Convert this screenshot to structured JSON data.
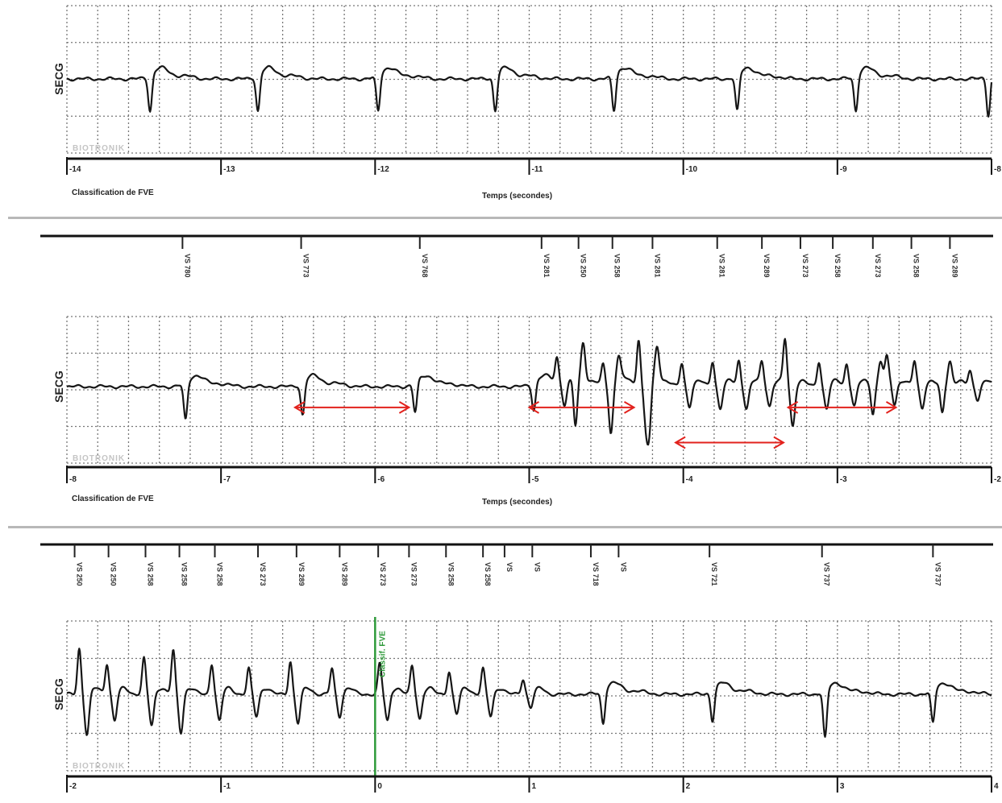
{
  "chart_data": [
    {
      "type": "line",
      "panel": "strip-1",
      "channel_label": "SECG",
      "watermark": "BIOTRONIK",
      "xlabel": "Temps (secondes)",
      "footer_left": "Classification de FVE",
      "x_ticks": [
        "-14",
        "-13",
        "-12",
        "-11",
        "-10",
        "-9",
        "-8"
      ],
      "xlim": [
        -14,
        -8
      ],
      "markers": [],
      "events": [],
      "annotations": [],
      "series": [
        {
          "beats": [
            {
              "t": -13.46,
              "kind": "neg",
              "amp": -0.72
            },
            {
              "t": -12.76,
              "kind": "neg",
              "amp": -0.72
            },
            {
              "t": -11.98,
              "kind": "neg",
              "amp": -0.72
            },
            {
              "t": -11.22,
              "kind": "neg",
              "amp": -0.72
            },
            {
              "t": -10.45,
              "kind": "neg",
              "amp": -0.72
            },
            {
              "t": -9.65,
              "kind": "neg",
              "amp": -0.72
            },
            {
              "t": -8.88,
              "kind": "neg",
              "amp": -0.72
            },
            {
              "t": -8.02,
              "kind": "neg",
              "amp": -0.8
            }
          ]
        }
      ]
    },
    {
      "type": "line",
      "panel": "strip-2",
      "channel_label": "SECG",
      "watermark": "BIOTRONIK",
      "xlabel": "Temps (secondes)",
      "footer_left": "Classification de FVE",
      "x_ticks": [
        "-8",
        "-7",
        "-6",
        "-5",
        "-4",
        "-3",
        "-2"
      ],
      "xlim": [
        -8,
        -2
      ],
      "markers": [
        {
          "t": -7.25,
          "label": "VS 780"
        },
        {
          "t": -6.48,
          "label": "VS 773"
        },
        {
          "t": -5.71,
          "label": "VS 768"
        },
        {
          "t": -4.92,
          "label": "VS 281"
        },
        {
          "t": -4.68,
          "label": "VS 250"
        },
        {
          "t": -4.46,
          "label": "VS 258"
        },
        {
          "t": -4.2,
          "label": "VS 281"
        },
        {
          "t": -3.78,
          "label": "VS 281"
        },
        {
          "t": -3.49,
          "label": "VS 289"
        },
        {
          "t": -3.24,
          "label": "VS 273"
        },
        {
          "t": -3.03,
          "label": "VS 258"
        },
        {
          "t": -2.77,
          "label": "VS 273"
        },
        {
          "t": -2.52,
          "label": "VS 258"
        },
        {
          "t": -2.27,
          "label": "VS 289"
        }
      ],
      "events": [],
      "annotations": [
        {
          "type": "double-arrow",
          "from": -6.52,
          "to": -5.78,
          "level": 0.62
        },
        {
          "type": "double-arrow",
          "from": -5.0,
          "to": -4.32,
          "level": 0.62
        },
        {
          "type": "double-arrow",
          "from": -4.05,
          "to": -3.35,
          "level": 0.86
        },
        {
          "type": "double-arrow",
          "from": -3.32,
          "to": -2.62,
          "level": 0.62
        }
      ],
      "series": [
        {
          "beats": [
            {
              "t": -7.23,
              "kind": "neg",
              "amp": -0.75
            },
            {
              "t": -6.47,
              "kind": "neg",
              "amp": -0.65
            },
            {
              "t": -5.74,
              "kind": "neg",
              "amp": -0.6
            },
            {
              "t": -4.97,
              "kind": "neg",
              "amp": -0.55
            },
            {
              "t": -4.8,
              "kind": "bi",
              "amp": 0.5
            },
            {
              "t": -4.68,
              "kind": "bi",
              "amp": -0.95
            },
            {
              "t": -4.5,
              "kind": "bi",
              "amp": 0.45
            },
            {
              "t": -4.45,
              "kind": "bi",
              "amp": -0.55
            },
            {
              "t": -4.27,
              "kind": "bi",
              "amp": 0.95
            },
            {
              "t": -4.2,
              "kind": "bi",
              "amp": -0.75
            },
            {
              "t": -3.99,
              "kind": "bi",
              "amp": 0.45
            },
            {
              "t": -3.79,
              "kind": "bi",
              "amp": 0.5
            },
            {
              "t": -3.62,
              "kind": "bi",
              "amp": 0.5
            },
            {
              "t": -3.47,
              "kind": "bi",
              "amp": 0.45
            },
            {
              "t": -3.32,
              "kind": "bi",
              "amp": 0.9
            },
            {
              "t": -3.1,
              "kind": "bi",
              "amp": 0.5
            },
            {
              "t": -2.92,
              "kind": "bi",
              "amp": 0.45
            },
            {
              "t": -2.75,
              "kind": "bi",
              "amp": -0.55
            },
            {
              "t": -2.66,
              "kind": "bi",
              "amp": 0.5
            },
            {
              "t": -2.48,
              "kind": "bi",
              "amp": 0.5
            },
            {
              "t": -2.3,
              "kind": "bi",
              "amp": -0.55
            },
            {
              "t": -2.12,
              "kind": "bi",
              "amp": 0.3
            }
          ]
        }
      ]
    },
    {
      "type": "line",
      "panel": "strip-3",
      "channel_label": "SECG",
      "watermark": "BIOTRONIK",
      "xlabel": "",
      "footer_left": "",
      "x_ticks": [
        "-2",
        "-1",
        "0",
        "1",
        "2",
        "3",
        "4"
      ],
      "xlim": [
        -2,
        4
      ],
      "markers": [
        {
          "t": -1.95,
          "label": "VS 250"
        },
        {
          "t": -1.73,
          "label": "VS 250"
        },
        {
          "t": -1.49,
          "label": "VS 258"
        },
        {
          "t": -1.27,
          "label": "VS 258"
        },
        {
          "t": -1.04,
          "label": "VS 258"
        },
        {
          "t": -0.76,
          "label": "VS 273"
        },
        {
          "t": -0.51,
          "label": "VS 289"
        },
        {
          "t": -0.23,
          "label": "VS 289"
        },
        {
          "t": 0.02,
          "label": "VS 273"
        },
        {
          "t": 0.22,
          "label": "VS 273"
        },
        {
          "t": 0.46,
          "label": "VS 258"
        },
        {
          "t": 0.7,
          "label": "VS 258"
        },
        {
          "t": 0.84,
          "label": "VS"
        },
        {
          "t": 1.02,
          "label": "VS"
        },
        {
          "t": 1.4,
          "label": "VS 718"
        },
        {
          "t": 1.58,
          "label": "VS"
        },
        {
          "t": 2.17,
          "label": "VS 721"
        },
        {
          "t": 2.9,
          "label": "VS 737"
        },
        {
          "t": 3.62,
          "label": "VS 737"
        }
      ],
      "events": [
        {
          "t": 0.0,
          "label": "Classif. FVE"
        }
      ],
      "annotations": [],
      "series": [
        {
          "beats": [
            {
              "t": -1.9,
              "kind": "bi",
              "amp": 0.9
            },
            {
              "t": -1.72,
              "kind": "bi",
              "amp": 0.6
            },
            {
              "t": -1.48,
              "kind": "bi",
              "amp": 0.7
            },
            {
              "t": -1.29,
              "kind": "bi",
              "amp": 0.85
            },
            {
              "t": -1.04,
              "kind": "bi",
              "amp": 0.6
            },
            {
              "t": -0.8,
              "kind": "bi",
              "amp": 0.5
            },
            {
              "t": -0.53,
              "kind": "bi",
              "amp": 0.65
            },
            {
              "t": -0.26,
              "kind": "bi",
              "amp": 0.5
            },
            {
              "t": 0.05,
              "kind": "bi",
              "amp": 0.6
            },
            {
              "t": 0.26,
              "kind": "bi",
              "amp": 0.55
            },
            {
              "t": 0.5,
              "kind": "bi",
              "amp": 0.45
            },
            {
              "t": 0.72,
              "kind": "bi",
              "amp": 0.5
            },
            {
              "t": 0.98,
              "kind": "bi",
              "amp": 0.3
            },
            {
              "t": 1.48,
              "kind": "neg",
              "amp": -0.65
            },
            {
              "t": 2.19,
              "kind": "neg",
              "amp": -0.6
            },
            {
              "t": 2.92,
              "kind": "neg",
              "amp": -0.95
            },
            {
              "t": 3.62,
              "kind": "neg",
              "amp": -0.65
            }
          ]
        }
      ]
    }
  ]
}
